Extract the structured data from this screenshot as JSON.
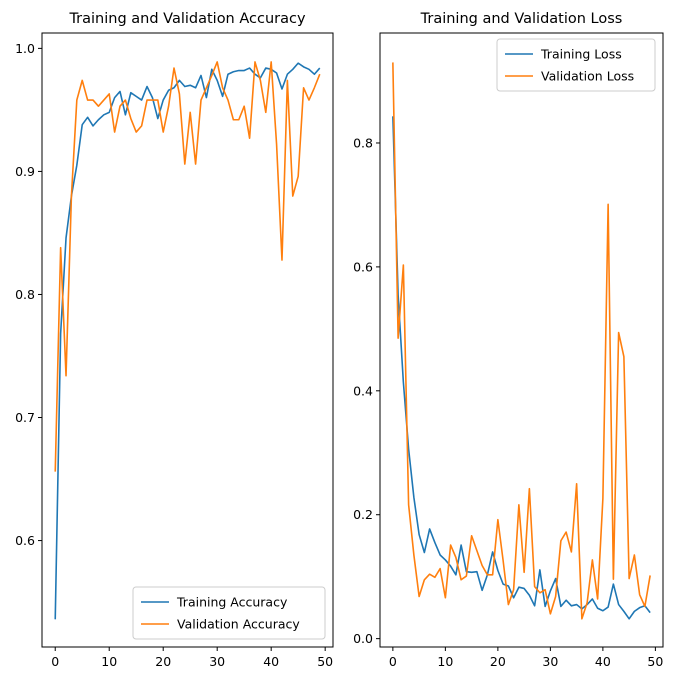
{
  "chart_data": [
    {
      "type": "line",
      "title": "Training and Validation Accuracy",
      "xlabel": "",
      "ylabel": "",
      "xlim": [
        -2.45,
        51.45
      ],
      "ylim": [
        0.5135,
        1.0125
      ],
      "xticks": [
        0,
        10,
        20,
        30,
        40,
        50
      ],
      "xtick_labels": [
        "0",
        "10",
        "20",
        "30",
        "40",
        "50"
      ],
      "yticks": [
        0.6,
        0.7,
        0.8,
        0.9,
        1.0
      ],
      "ytick_labels": [
        "0.6",
        "0.7",
        "0.8",
        "0.9",
        "1.0"
      ],
      "grid": false,
      "legend": "lower right",
      "x": [
        0,
        1,
        2,
        3,
        4,
        5,
        6,
        7,
        8,
        9,
        10,
        11,
        12,
        13,
        14,
        15,
        16,
        17,
        18,
        19,
        20,
        21,
        22,
        23,
        24,
        25,
        26,
        27,
        28,
        29,
        30,
        31,
        32,
        33,
        34,
        35,
        36,
        37,
        38,
        39,
        40,
        41,
        42,
        43,
        44,
        45,
        46,
        47,
        48,
        49
      ],
      "series": [
        {
          "name": "Training Accuracy",
          "color": "#1f77b4",
          "values": [
            0.536,
            0.768,
            0.846,
            0.88,
            0.905,
            0.938,
            0.944,
            0.937,
            0.942,
            0.946,
            0.948,
            0.96,
            0.965,
            0.946,
            0.964,
            0.961,
            0.958,
            0.969,
            0.96,
            0.943,
            0.958,
            0.966,
            0.968,
            0.974,
            0.969,
            0.97,
            0.968,
            0.978,
            0.96,
            0.983,
            0.974,
            0.961,
            0.979,
            0.981,
            0.982,
            0.982,
            0.984,
            0.979,
            0.976,
            0.984,
            0.983,
            0.98,
            0.967,
            0.979,
            0.983,
            0.988,
            0.985,
            0.983,
            0.979,
            0.984
          ]
        },
        {
          "name": "Validation Accuracy",
          "color": "#ff7f0e",
          "values": [
            0.656,
            0.838,
            0.734,
            0.88,
            0.958,
            0.974,
            0.958,
            0.958,
            0.953,
            0.958,
            0.963,
            0.932,
            0.953,
            0.958,
            0.943,
            0.932,
            0.937,
            0.958,
            0.958,
            0.958,
            0.932,
            0.953,
            0.984,
            0.963,
            0.906,
            0.948,
            0.906,
            0.958,
            0.968,
            0.978,
            0.989,
            0.968,
            0.958,
            0.942,
            0.942,
            0.953,
            0.927,
            0.989,
            0.974,
            0.948,
            0.989,
            0.922,
            0.828,
            0.974,
            0.88,
            0.896,
            0.968,
            0.958,
            0.968,
            0.979
          ]
        }
      ]
    },
    {
      "type": "line",
      "title": "Training and Validation Loss",
      "xlabel": "",
      "ylabel": "",
      "xlim": [
        -2.45,
        51.45
      ],
      "ylim": [
        -0.0135,
        0.9775
      ],
      "xticks": [
        0,
        10,
        20,
        30,
        40,
        50
      ],
      "xtick_labels": [
        "0",
        "10",
        "20",
        "30",
        "40",
        "50"
      ],
      "yticks": [
        0.0,
        0.2,
        0.4,
        0.6,
        0.8
      ],
      "ytick_labels": [
        "0.0",
        "0.2",
        "0.4",
        "0.6",
        "0.8"
      ],
      "grid": false,
      "legend": "upper right",
      "x": [
        0,
        1,
        2,
        3,
        4,
        5,
        6,
        7,
        8,
        9,
        10,
        11,
        12,
        13,
        14,
        15,
        16,
        17,
        18,
        19,
        20,
        21,
        22,
        23,
        24,
        25,
        26,
        27,
        28,
        29,
        30,
        31,
        32,
        33,
        34,
        35,
        36,
        37,
        38,
        39,
        40,
        41,
        42,
        43,
        44,
        45,
        46,
        47,
        48,
        49
      ],
      "series": [
        {
          "name": "Training Loss",
          "color": "#1f77b4",
          "values": [
            0.843,
            0.555,
            0.414,
            0.306,
            0.228,
            0.168,
            0.139,
            0.177,
            0.155,
            0.135,
            0.127,
            0.117,
            0.103,
            0.151,
            0.108,
            0.107,
            0.108,
            0.078,
            0.103,
            0.14,
            0.11,
            0.088,
            0.085,
            0.066,
            0.083,
            0.081,
            0.07,
            0.053,
            0.111,
            0.052,
            0.077,
            0.097,
            0.052,
            0.062,
            0.053,
            0.055,
            0.048,
            0.055,
            0.064,
            0.049,
            0.045,
            0.051,
            0.088,
            0.055,
            0.044,
            0.032,
            0.044,
            0.05,
            0.053,
            0.042
          ]
        },
        {
          "name": "Validation Loss",
          "color": "#ff7f0e",
          "values": [
            0.93,
            0.485,
            0.603,
            0.216,
            0.135,
            0.068,
            0.095,
            0.104,
            0.099,
            0.113,
            0.066,
            0.151,
            0.131,
            0.095,
            0.101,
            0.166,
            0.142,
            0.118,
            0.103,
            0.103,
            0.192,
            0.126,
            0.055,
            0.079,
            0.216,
            0.107,
            0.242,
            0.084,
            0.074,
            0.079,
            0.04,
            0.068,
            0.158,
            0.172,
            0.14,
            0.25,
            0.032,
            0.058,
            0.127,
            0.064,
            0.226,
            0.701,
            0.096,
            0.494,
            0.455,
            0.097,
            0.135,
            0.071,
            0.052,
            0.102
          ]
        }
      ]
    }
  ]
}
